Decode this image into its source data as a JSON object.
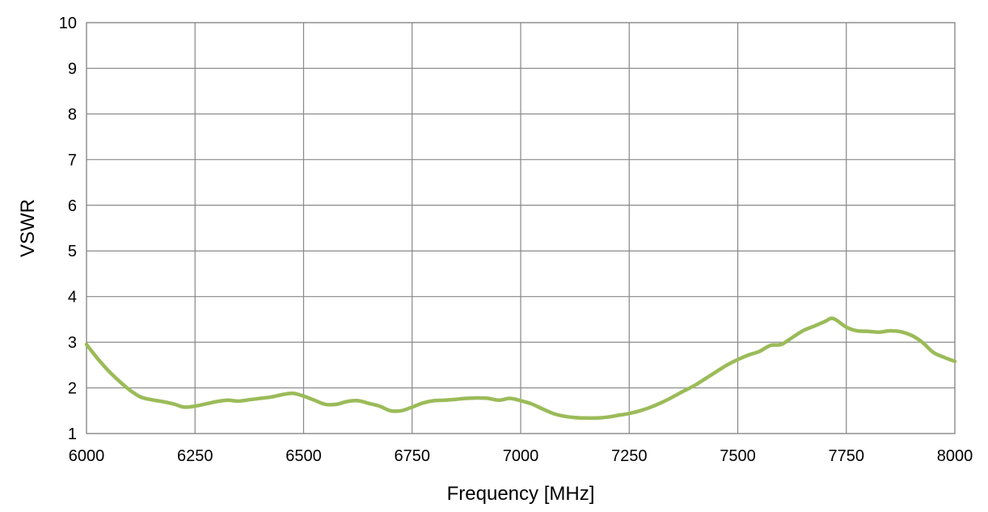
{
  "chart_data": {
    "type": "line",
    "title": "",
    "xlabel": "Frequency [MHz]",
    "ylabel": "VSWR",
    "xlim": [
      6000,
      8000
    ],
    "ylim": [
      1,
      10
    ],
    "xticks": [
      6000,
      6250,
      6500,
      6750,
      7000,
      7250,
      7500,
      7750,
      8000
    ],
    "yticks": [
      1,
      2,
      3,
      4,
      5,
      6,
      7,
      8,
      9,
      10
    ],
    "grid": true,
    "legend": "none",
    "series": [
      {
        "color": "#9BBB59",
        "x": [
          6000,
          6025,
          6050,
          6075,
          6100,
          6125,
          6150,
          6175,
          6200,
          6225,
          6250,
          6275,
          6300,
          6325,
          6350,
          6375,
          6400,
          6425,
          6450,
          6475,
          6500,
          6525,
          6550,
          6575,
          6600,
          6625,
          6650,
          6675,
          6700,
          6725,
          6750,
          6775,
          6800,
          6825,
          6850,
          6875,
          6900,
          6925,
          6950,
          6975,
          7000,
          7025,
          7050,
          7075,
          7100,
          7125,
          7150,
          7175,
          7200,
          7225,
          7250,
          7275,
          7300,
          7325,
          7350,
          7375,
          7400,
          7425,
          7450,
          7475,
          7500,
          7525,
          7550,
          7575,
          7600,
          7625,
          7650,
          7675,
          7700,
          7720,
          7750,
          7775,
          7800,
          7825,
          7850,
          7875,
          7900,
          7925,
          7950,
          7975,
          8000
        ],
        "y": [
          2.95,
          2.65,
          2.38,
          2.15,
          1.95,
          1.8,
          1.74,
          1.7,
          1.65,
          1.58,
          1.6,
          1.65,
          1.7,
          1.73,
          1.71,
          1.74,
          1.77,
          1.8,
          1.85,
          1.88,
          1.82,
          1.73,
          1.64,
          1.64,
          1.7,
          1.72,
          1.66,
          1.6,
          1.5,
          1.5,
          1.58,
          1.67,
          1.72,
          1.73,
          1.75,
          1.77,
          1.78,
          1.77,
          1.73,
          1.77,
          1.72,
          1.65,
          1.54,
          1.44,
          1.38,
          1.35,
          1.34,
          1.34,
          1.36,
          1.4,
          1.44,
          1.5,
          1.58,
          1.68,
          1.8,
          1.93,
          2.05,
          2.2,
          2.35,
          2.5,
          2.62,
          2.72,
          2.8,
          2.93,
          2.95,
          3.1,
          3.25,
          3.35,
          3.45,
          3.52,
          3.33,
          3.25,
          3.24,
          3.22,
          3.25,
          3.23,
          3.15,
          3.0,
          2.78,
          2.67,
          2.58
        ]
      }
    ]
  }
}
